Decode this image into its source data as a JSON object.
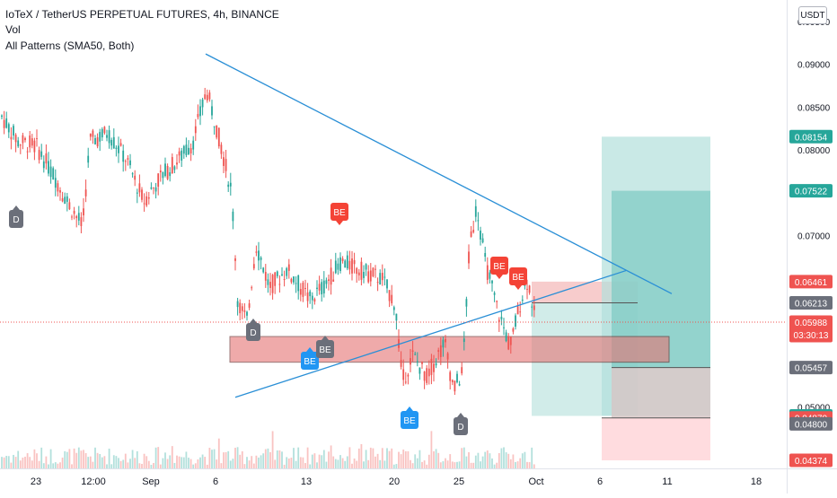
{
  "header": {
    "title": "IoTeX / TetherUS PERPETUAL FUTURES, 4h, BINANCE",
    "indicator_vol": "Vol",
    "indicator_patterns": "All Patterns (SMA50, Both)",
    "currency": "USDT"
  },
  "colors": {
    "up": "#26a69a",
    "down": "#ef5350",
    "trendline": "#2a8fd6",
    "zone_fill": "#e57373",
    "profit_zone": "#26a69a",
    "loss_zone": "#ef9a9a",
    "badge_blue": "#2196f3",
    "badge_gray": "#6b6f7a",
    "badge_red": "#f44336",
    "price_line": "#ef5350"
  },
  "chart_data": {
    "type": "candlestick",
    "timeframe": "4h",
    "x_ticks": [
      "23",
      "12:00",
      "Sep",
      "6",
      "13",
      "20",
      "25",
      "Oct",
      "6",
      "11",
      "18"
    ],
    "y_ticks": [
      "0.09500",
      "0.09000",
      "0.08500",
      "0.08000",
      "0.07000",
      "0.05000"
    ],
    "ylim": [
      0.0428,
      0.0975
    ],
    "price_labels": [
      {
        "value": 0.08154,
        "label": "0.08154",
        "color": "#26a69a"
      },
      {
        "value": 0.07522,
        "label": "0.07522",
        "color": "#26a69a"
      },
      {
        "value": 0.06461,
        "label": "0.06461",
        "color": "#ef5350"
      },
      {
        "value": 0.06213,
        "label": "0.06213",
        "color": "#6b6f7a"
      },
      {
        "value": 0.05988,
        "label": "0.05988",
        "sublabel": "03:30:13",
        "color": "#ef5350"
      },
      {
        "value": 0.05457,
        "label": "0.05457",
        "color": "#6b6f7a"
      },
      {
        "value": 0.04893,
        "label": "0.04893",
        "color": "#26a69a"
      },
      {
        "value": 0.0487,
        "label": "0.04870",
        "color": "#ef5350"
      },
      {
        "value": 0.048,
        "label": "0.04800",
        "color": "#6b6f7a"
      },
      {
        "value": 0.04374,
        "label": "0.04374",
        "color": "#ef5350"
      }
    ],
    "pattern_badges": [
      {
        "label": "D",
        "color": "gray"
      },
      {
        "label": "D",
        "color": "gray"
      },
      {
        "label": "D",
        "color": "gray"
      },
      {
        "label": "BE",
        "color": "red"
      },
      {
        "label": "BE",
        "color": "red"
      },
      {
        "label": "BE",
        "color": "red"
      },
      {
        "label": "BE",
        "color": "blue"
      },
      {
        "label": "BE",
        "color": "gray"
      },
      {
        "label": "BE",
        "color": "blue"
      }
    ]
  }
}
